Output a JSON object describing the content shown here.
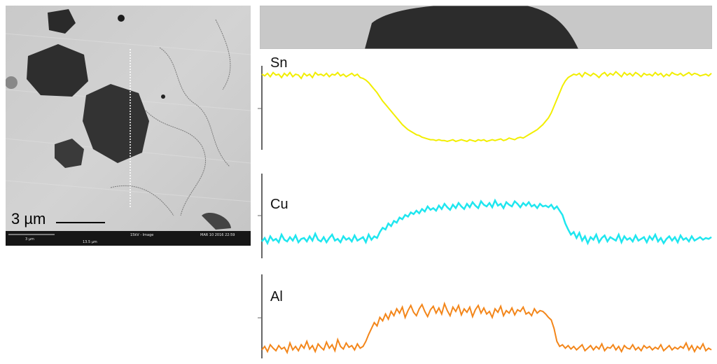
{
  "sem_image": {
    "scale_label": "3 µm",
    "info_bar": {
      "scale_small": "3 µm",
      "width": "13.5 µm",
      "mode": "15kV - Image",
      "date": "MAR 10 2016 22:59"
    }
  },
  "colors": {
    "Sn": "#f2ee00",
    "Cu": "#1fe6ef",
    "Al": "#f3861a"
  },
  "chart_data": {
    "type": "line",
    "title": "",
    "xlabel": "",
    "ylabel": "",
    "grid": false,
    "legend": "none",
    "x_range": [
      0,
      160
    ],
    "y_range": [
      0,
      100
    ],
    "series": [
      {
        "name": "Sn",
        "values": [
          90,
          88,
          91,
          87,
          92,
          89,
          90,
          86,
          91,
          88,
          92,
          87,
          90,
          89,
          85,
          91,
          88,
          90,
          86,
          92,
          89,
          90,
          88,
          91,
          87,
          90,
          89,
          92,
          88,
          90,
          87,
          89,
          91,
          88,
          90,
          86,
          85,
          83,
          80,
          76,
          72,
          68,
          63,
          58,
          54,
          50,
          46,
          42,
          38,
          34,
          30,
          27,
          24,
          22,
          20,
          18,
          17,
          15,
          14,
          13,
          12,
          12,
          11,
          12,
          11,
          11,
          10,
          11,
          12,
          10,
          11,
          12,
          11,
          10,
          12,
          11,
          10,
          12,
          11,
          12,
          10,
          11,
          12,
          11,
          12,
          13,
          11,
          12,
          14,
          13,
          12,
          14,
          15,
          14,
          16,
          18,
          20,
          22,
          24,
          27,
          30,
          34,
          38,
          44,
          52,
          60,
          68,
          76,
          82,
          86,
          88,
          90,
          89,
          91,
          87,
          92,
          90,
          88,
          91,
          89,
          86,
          90,
          92,
          88,
          91,
          89,
          93,
          90,
          87,
          92,
          89,
          91,
          88,
          92,
          90,
          87,
          91,
          89,
          90,
          88,
          92,
          89,
          91,
          87,
          90,
          88,
          92,
          90,
          89,
          91,
          88,
          90,
          92,
          89,
          91,
          90,
          88,
          89,
          90,
          88,
          91
        ]
      },
      {
        "name": "Cu",
        "values": [
          14,
          18,
          12,
          20,
          15,
          17,
          13,
          22,
          16,
          14,
          19,
          15,
          21,
          13,
          17,
          18,
          14,
          20,
          15,
          23,
          16,
          14,
          19,
          13,
          18,
          22,
          15,
          17,
          13,
          20,
          16,
          18,
          14,
          21,
          15,
          17,
          19,
          13,
          22,
          16,
          20,
          18,
          25,
          30,
          28,
          35,
          32,
          38,
          36,
          42,
          40,
          45,
          43,
          48,
          46,
          50,
          47,
          52,
          49,
          55,
          51,
          53,
          50,
          56,
          52,
          58,
          54,
          51,
          57,
          53,
          59,
          55,
          52,
          58,
          54,
          60,
          56,
          53,
          61,
          57,
          55,
          59,
          54,
          62,
          56,
          58,
          53,
          60,
          57,
          55,
          61,
          58,
          54,
          59,
          56,
          60,
          55,
          57,
          53,
          58,
          55,
          56,
          54,
          57,
          52,
          55,
          50,
          45,
          35,
          28,
          22,
          25,
          18,
          24,
          15,
          20,
          12,
          19,
          16,
          22,
          13,
          18,
          21,
          14,
          19,
          17,
          15,
          22,
          13,
          20,
          16,
          18,
          14,
          21,
          15,
          17,
          19,
          13,
          20,
          16,
          22,
          14,
          18,
          12,
          17,
          20,
          15,
          19,
          13,
          21,
          16,
          18,
          14,
          20,
          15,
          17,
          19,
          16,
          18,
          17,
          19
        ]
      },
      {
        "name": "Al",
        "values": [
          10,
          14,
          8,
          16,
          12,
          9,
          15,
          11,
          13,
          7,
          18,
          10,
          14,
          9,
          16,
          12,
          20,
          11,
          15,
          8,
          17,
          13,
          10,
          19,
          12,
          16,
          9,
          22,
          14,
          11,
          18,
          13,
          15,
          10,
          17,
          12,
          14,
          20,
          28,
          35,
          42,
          38,
          48,
          44,
          52,
          46,
          55,
          50,
          58,
          53,
          60,
          48,
          56,
          62,
          54,
          50,
          58,
          63,
          55,
          49,
          57,
          61,
          53,
          59,
          52,
          64,
          56,
          50,
          60,
          55,
          62,
          51,
          58,
          54,
          60,
          49,
          57,
          62,
          53,
          59,
          52,
          55,
          48,
          58,
          54,
          61,
          50,
          56,
          53,
          59,
          51,
          57,
          55,
          60,
          52,
          54,
          50,
          58,
          53,
          56,
          55,
          52,
          48,
          45,
          35,
          20,
          14,
          16,
          12,
          15,
          11,
          14,
          10,
          13,
          16,
          9,
          12,
          15,
          10,
          14,
          11,
          17,
          9,
          13,
          12,
          16,
          10,
          14,
          8,
          15,
          12,
          11,
          16,
          10,
          13,
          9,
          15,
          12,
          14,
          10,
          13,
          11,
          16,
          9,
          12,
          15,
          10,
          13,
          11,
          14,
          12,
          18,
          10,
          15,
          8,
          14,
          11,
          17,
          9,
          12,
          10
        ]
      }
    ]
  }
}
